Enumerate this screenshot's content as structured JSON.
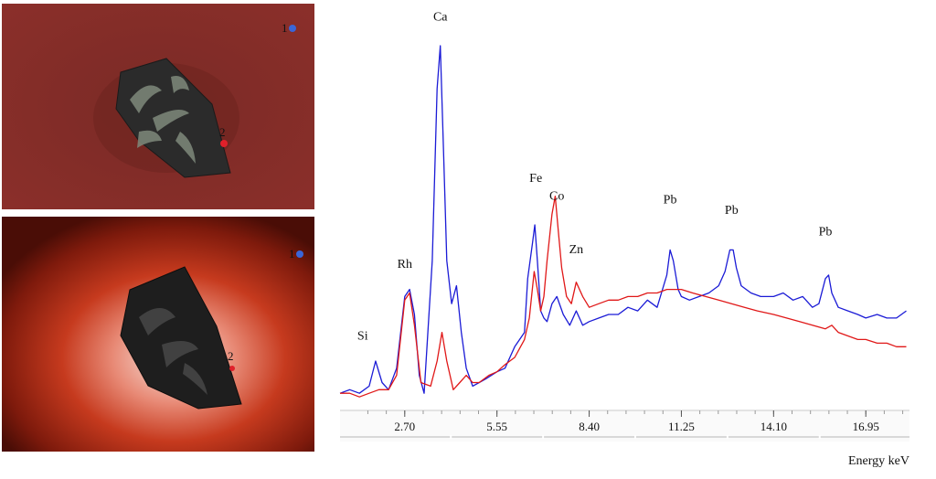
{
  "photos": [
    {
      "markers": [
        {
          "label": "1",
          "color": "#3a66d8"
        },
        {
          "label": "2",
          "color": "#e0202a"
        }
      ]
    },
    {
      "markers": [
        {
          "label": "1",
          "color": "#3a66d8"
        },
        {
          "label": "2",
          "color": "#e0202a"
        }
      ]
    }
  ],
  "chart_data": {
    "type": "line",
    "xlabel": "Energy keV",
    "ylabel": "",
    "xlim": [
      0.7,
      18.3
    ],
    "ylim": [
      0,
      100
    ],
    "grid": false,
    "x_ticks": [
      2.7,
      5.55,
      8.4,
      11.25,
      14.1,
      16.95
    ],
    "x_tick_labels": [
      "2.70",
      "5.55",
      "8.40",
      "11.25",
      "14.10",
      "16.95"
    ],
    "series": [
      {
        "color": "#1b1bd6",
        "points": [
          [
            0.7,
            3
          ],
          [
            1.0,
            4
          ],
          [
            1.3,
            3
          ],
          [
            1.6,
            5
          ],
          [
            1.8,
            12
          ],
          [
            2.0,
            6
          ],
          [
            2.2,
            4
          ],
          [
            2.45,
            10
          ],
          [
            2.7,
            30
          ],
          [
            2.85,
            32
          ],
          [
            3.0,
            25
          ],
          [
            3.15,
            8
          ],
          [
            3.3,
            3
          ],
          [
            3.55,
            40
          ],
          [
            3.7,
            88
          ],
          [
            3.8,
            100
          ],
          [
            3.9,
            70
          ],
          [
            4.0,
            40
          ],
          [
            4.15,
            28
          ],
          [
            4.3,
            33
          ],
          [
            4.45,
            20
          ],
          [
            4.6,
            10
          ],
          [
            4.8,
            5
          ],
          [
            5.0,
            6
          ],
          [
            5.2,
            7
          ],
          [
            5.55,
            9
          ],
          [
            5.8,
            10
          ],
          [
            6.1,
            16
          ],
          [
            6.4,
            20
          ],
          [
            6.5,
            35
          ],
          [
            6.65,
            45
          ],
          [
            6.72,
            50
          ],
          [
            6.8,
            40
          ],
          [
            6.9,
            26
          ],
          [
            7.0,
            24
          ],
          [
            7.1,
            23
          ],
          [
            7.25,
            28
          ],
          [
            7.4,
            30
          ],
          [
            7.6,
            25
          ],
          [
            7.8,
            22
          ],
          [
            8.0,
            26
          ],
          [
            8.2,
            22
          ],
          [
            8.4,
            23
          ],
          [
            8.7,
            24
          ],
          [
            9.0,
            25
          ],
          [
            9.3,
            25
          ],
          [
            9.6,
            27
          ],
          [
            9.9,
            26
          ],
          [
            10.2,
            29
          ],
          [
            10.5,
            27
          ],
          [
            10.8,
            36
          ],
          [
            10.9,
            43
          ],
          [
            11.0,
            40
          ],
          [
            11.15,
            32
          ],
          [
            11.25,
            30
          ],
          [
            11.5,
            29
          ],
          [
            11.8,
            30
          ],
          [
            12.1,
            31
          ],
          [
            12.4,
            33
          ],
          [
            12.6,
            37
          ],
          [
            12.75,
            43
          ],
          [
            12.85,
            43
          ],
          [
            12.95,
            38
          ],
          [
            13.1,
            33
          ],
          [
            13.4,
            31
          ],
          [
            13.7,
            30
          ],
          [
            14.1,
            30
          ],
          [
            14.4,
            31
          ],
          [
            14.7,
            29
          ],
          [
            15.0,
            30
          ],
          [
            15.3,
            27
          ],
          [
            15.5,
            28
          ],
          [
            15.7,
            35
          ],
          [
            15.8,
            36
          ],
          [
            15.9,
            31
          ],
          [
            16.1,
            27
          ],
          [
            16.4,
            26
          ],
          [
            16.7,
            25
          ],
          [
            16.95,
            24
          ],
          [
            17.3,
            25
          ],
          [
            17.6,
            24
          ],
          [
            17.9,
            24
          ],
          [
            18.2,
            26
          ]
        ]
      },
      {
        "color": "#e01818",
        "points": [
          [
            0.7,
            3
          ],
          [
            1.0,
            3
          ],
          [
            1.3,
            2
          ],
          [
            1.6,
            3
          ],
          [
            1.9,
            4
          ],
          [
            2.2,
            4
          ],
          [
            2.45,
            8
          ],
          [
            2.7,
            29
          ],
          [
            2.85,
            31
          ],
          [
            3.0,
            22
          ],
          [
            3.2,
            6
          ],
          [
            3.5,
            5
          ],
          [
            3.7,
            12
          ],
          [
            3.85,
            20
          ],
          [
            4.0,
            12
          ],
          [
            4.2,
            4
          ],
          [
            4.4,
            6
          ],
          [
            4.6,
            8
          ],
          [
            4.8,
            6
          ],
          [
            5.0,
            6
          ],
          [
            5.3,
            8
          ],
          [
            5.55,
            9
          ],
          [
            5.8,
            11
          ],
          [
            6.1,
            13
          ],
          [
            6.4,
            18
          ],
          [
            6.55,
            24
          ],
          [
            6.7,
            37
          ],
          [
            6.8,
            32
          ],
          [
            6.9,
            26
          ],
          [
            7.0,
            30
          ],
          [
            7.1,
            40
          ],
          [
            7.25,
            53
          ],
          [
            7.35,
            58
          ],
          [
            7.45,
            48
          ],
          [
            7.55,
            38
          ],
          [
            7.7,
            30
          ],
          [
            7.85,
            28
          ],
          [
            8.0,
            34
          ],
          [
            8.2,
            30
          ],
          [
            8.4,
            27
          ],
          [
            8.7,
            28
          ],
          [
            9.0,
            29
          ],
          [
            9.3,
            29
          ],
          [
            9.6,
            30
          ],
          [
            9.9,
            30
          ],
          [
            10.2,
            31
          ],
          [
            10.5,
            31
          ],
          [
            10.8,
            32
          ],
          [
            11.25,
            32
          ],
          [
            11.6,
            31
          ],
          [
            12.0,
            30
          ],
          [
            12.4,
            29
          ],
          [
            12.8,
            28
          ],
          [
            13.2,
            27
          ],
          [
            13.6,
            26
          ],
          [
            14.1,
            25
          ],
          [
            14.5,
            24
          ],
          [
            14.9,
            23
          ],
          [
            15.3,
            22
          ],
          [
            15.7,
            21
          ],
          [
            15.9,
            22
          ],
          [
            16.1,
            20
          ],
          [
            16.4,
            19
          ],
          [
            16.7,
            18
          ],
          [
            16.95,
            18
          ],
          [
            17.3,
            17
          ],
          [
            17.6,
            17
          ],
          [
            17.9,
            16
          ],
          [
            18.2,
            16
          ]
        ]
      }
    ],
    "annotations": [
      {
        "text": "Si",
        "x": 1.4,
        "y": 16
      },
      {
        "text": "Rh",
        "x": 2.7,
        "y": 36
      },
      {
        "text": "Ca",
        "x": 3.8,
        "y": 105
      },
      {
        "text": "Fe",
        "x": 6.75,
        "y": 60
      },
      {
        "text": "Co",
        "x": 7.4,
        "y": 55
      },
      {
        "text": "Zn",
        "x": 8.0,
        "y": 40
      },
      {
        "text": "Pb",
        "x": 10.9,
        "y": 54
      },
      {
        "text": "Pb",
        "x": 12.8,
        "y": 51
      },
      {
        "text": "Pb",
        "x": 15.7,
        "y": 45
      }
    ]
  }
}
